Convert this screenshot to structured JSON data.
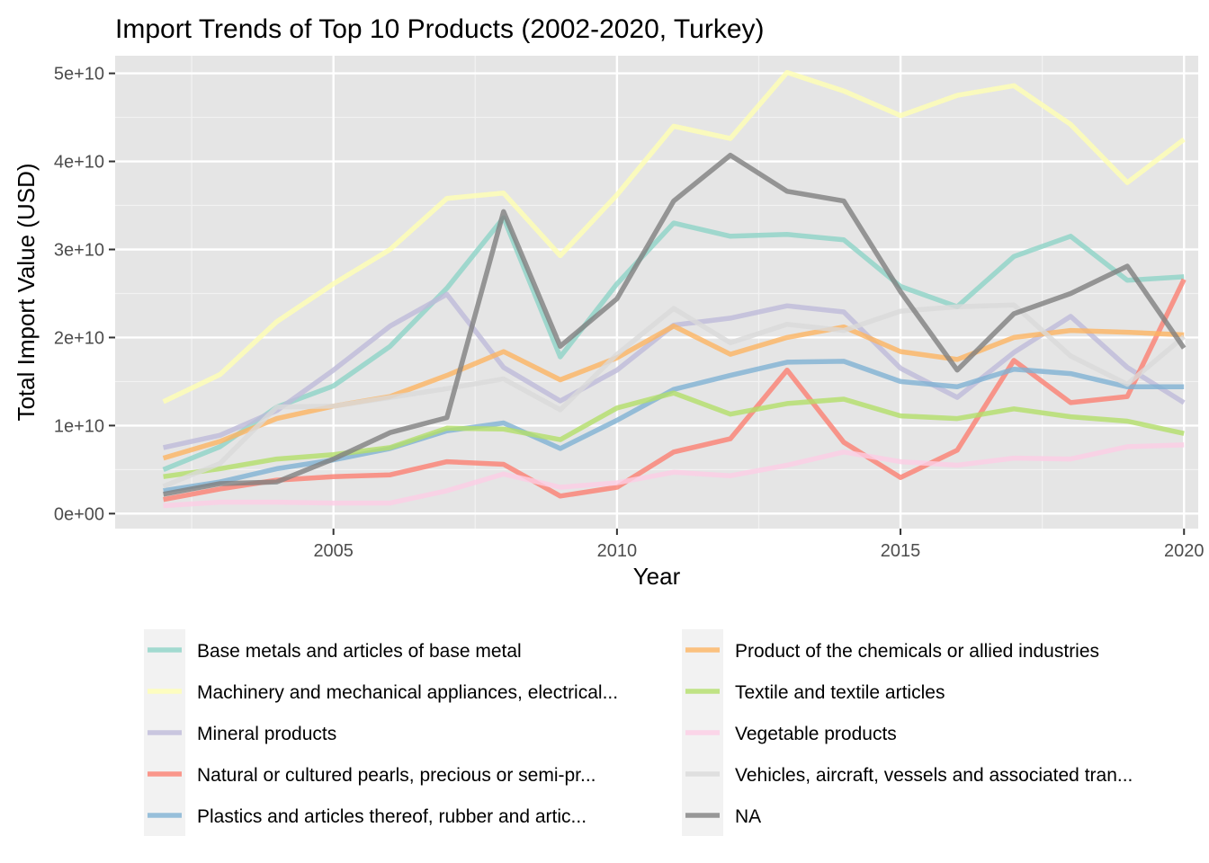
{
  "chart_data": {
    "type": "line",
    "title": "Import Trends of Top 10 Products (2002-2020, Turkey)",
    "xlabel": "Year",
    "ylabel": "Total Import Value (USD)",
    "x": [
      2002,
      2003,
      2004,
      2005,
      2006,
      2007,
      2008,
      2009,
      2010,
      2011,
      2012,
      2013,
      2014,
      2015,
      2016,
      2017,
      2018,
      2019,
      2020
    ],
    "xlim": [
      2001.15,
      2020.25
    ],
    "ylim": [
      -1700000000.0,
      52000000000.0
    ],
    "x_ticks": [
      2005,
      2010,
      2015,
      2020
    ],
    "x_tick_labels": [
      "2005",
      "2010",
      "2015",
      "2020"
    ],
    "y_ticks": [
      0,
      10000000000.0,
      20000000000.0,
      30000000000.0,
      40000000000.0,
      50000000000.0
    ],
    "y_tick_labels": [
      "0e+00",
      "1e+10",
      "2e+10",
      "3e+10",
      "4e+10",
      "5e+10"
    ],
    "grid": true,
    "legend_placement": "bottom",
    "background_color": "#e5e5e5",
    "series": [
      {
        "name": "Base metals and articles of base metal",
        "color": "#8dd3c7",
        "values": [
          5000000000.0,
          7600000000.0,
          12100000000.0,
          14500000000.0,
          19000000000.0,
          25600000000.0,
          33600000000.0,
          17800000000.0,
          26100000000.0,
          33000000000.0,
          31500000000.0,
          31700000000.0,
          31100000000.0,
          25800000000.0,
          23500000000.0,
          29200000000.0,
          31500000000.0,
          26500000000.0,
          26900000000.0
        ]
      },
      {
        "name": "Machinery and mechanical appliances, electrical...",
        "color": "#ffffb3",
        "values": [
          12700000000.0,
          15800000000.0,
          21800000000.0,
          26100000000.0,
          30000000000.0,
          35800000000.0,
          36400000000.0,
          29300000000.0,
          36200000000.0,
          44000000000.0,
          42600000000.0,
          50100000000.0,
          48000000000.0,
          45200000000.0,
          47500000000.0,
          48600000000.0,
          44200000000.0,
          37600000000.0,
          42500000000.0
        ]
      },
      {
        "name": "Mineral products",
        "color": "#bebada",
        "values": [
          7500000000.0,
          8900000000.0,
          11700000000.0,
          16300000000.0,
          21300000000.0,
          24900000000.0,
          16600000000.0,
          12800000000.0,
          16300000000.0,
          21400000000.0,
          22200000000.0,
          23600000000.0,
          22900000000.0,
          16500000000.0,
          13200000000.0,
          18300000000.0,
          22400000000.0,
          16600000000.0,
          12600000000.0
        ]
      },
      {
        "name": "Natural or cultured pearls, precious or semi-pr...",
        "color": "#fb8072",
        "values": [
          1600000000.0,
          2800000000.0,
          3800000000.0,
          4200000000.0,
          4400000000.0,
          5900000000.0,
          5600000000.0,
          2000000000.0,
          3000000000.0,
          7000000000.0,
          8500000000.0,
          16300000000.0,
          8100000000.0,
          4100000000.0,
          7200000000.0,
          17400000000.0,
          12600000000.0,
          13300000000.0,
          26600000000.0
        ]
      },
      {
        "name": "Plastics and articles thereof, rubber and artic...",
        "color": "#80b1d3",
        "values": [
          2600000000.0,
          3600000000.0,
          5100000000.0,
          6100000000.0,
          7400000000.0,
          9400000000.0,
          10300000000.0,
          7400000000.0,
          10600000000.0,
          14100000000.0,
          15700000000.0,
          17200000000.0,
          17300000000.0,
          15000000000.0,
          14400000000.0,
          16400000000.0,
          15900000000.0,
          14400000000.0,
          14400000000.0
        ]
      },
      {
        "name": "Product of the chemicals or allied industries",
        "color": "#fdb462",
        "values": [
          6300000000.0,
          8200000000.0,
          10800000000.0,
          12200000000.0,
          13300000000.0,
          15700000000.0,
          18400000000.0,
          15200000000.0,
          17700000000.0,
          21300000000.0,
          18100000000.0,
          20000000000.0,
          21200000000.0,
          18400000000.0,
          17500000000.0,
          20000000000.0,
          20800000000.0,
          20600000000.0,
          20300000000.0
        ]
      },
      {
        "name": "Textile and textile articles",
        "color": "#b3de69",
        "values": [
          4200000000.0,
          5100000000.0,
          6200000000.0,
          6700000000.0,
          7500000000.0,
          9700000000.0,
          9600000000.0,
          8400000000.0,
          12000000000.0,
          13700000000.0,
          11300000000.0,
          12500000000.0,
          13000000000.0,
          11100000000.0,
          10800000000.0,
          11900000000.0,
          11000000000.0,
          10500000000.0,
          9100000000.0
        ]
      },
      {
        "name": "Vegetable products",
        "color": "#fccde5",
        "values": [
          900000000.0,
          1300000000.0,
          1300000000.0,
          1200000000.0,
          1200000000.0,
          2600000000.0,
          4500000000.0,
          3000000000.0,
          3500000000.0,
          4700000000.0,
          4300000000.0,
          5500000000.0,
          7000000000.0,
          5900000000.0,
          5500000000.0,
          6300000000.0,
          6200000000.0,
          7600000000.0,
          7800000000.0
        ]
      },
      {
        "name": "Vehicles, aircraft, vessels and associated tran...",
        "color": "#d9d9d9",
        "values": [
          3100000000.0,
          5700000000.0,
          12100000000.0,
          12200000000.0,
          13200000000.0,
          14200000000.0,
          15300000000.0,
          11800000000.0,
          18100000000.0,
          23300000000.0,
          19400000000.0,
          21500000000.0,
          20800000000.0,
          23000000000.0,
          23500000000.0,
          23700000000.0,
          17900000000.0,
          14700000000.0,
          20100000000.0
        ]
      },
      {
        "name": "NA",
        "color": "#7f7f7f",
        "values": [
          2200000000.0,
          3400000000.0,
          3600000000.0,
          6200000000.0,
          9200000000.0,
          10900000000.0,
          34300000000.0,
          19000000000.0,
          24400000000.0,
          35500000000.0,
          40700000000.0,
          36600000000.0,
          35500000000.0,
          25200000000.0,
          16300000000.0,
          22700000000.0,
          25000000000.0,
          28100000000.0,
          18800000000.0
        ]
      }
    ]
  }
}
